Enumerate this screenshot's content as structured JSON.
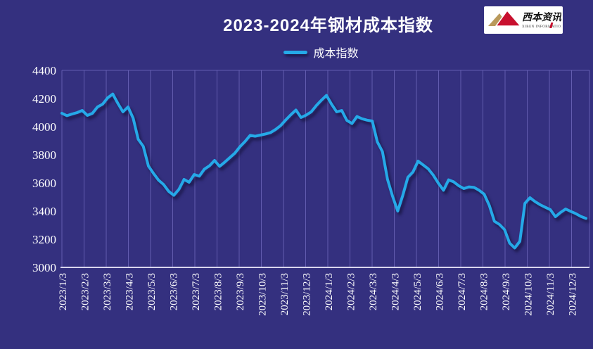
{
  "title": "2023-2024年钢材成本指数",
  "legend": {
    "label": "成本指数"
  },
  "logo": {
    "name": "西本资讯",
    "subtext": "XIBEN INFORMATION"
  },
  "colors": {
    "background": "#34307F",
    "gridline": "#6E68BC",
    "axis_line": "#D9D6EE",
    "series_line": "#25A9E8",
    "tick_text": "#FFFFFF",
    "title_text": "#FFFFFF",
    "logo_red": "#C8102E",
    "logo_gold": "#B9995B"
  },
  "chart_data": {
    "type": "line",
    "title": "2023-2024年钢材成本指数",
    "legend_position": "top-center",
    "grid": "vertical-only",
    "ylim": [
      3000,
      4400
    ],
    "yticks": [
      4400,
      4200,
      4000,
      3800,
      3600,
      3400,
      3200,
      3000
    ],
    "xtick_labels": [
      "2023/1/3",
      "2023/2/3",
      "2023/3/3",
      "2023/4/3",
      "2023/5/3",
      "2023/6/3",
      "2023/7/3",
      "2023/8/3",
      "2023/9/3",
      "2023/10/3",
      "2023/11/3",
      "2023/12/3",
      "2024/1/3",
      "2024/2/3",
      "2024/3/3",
      "2024/4/3",
      "2024/5/3",
      "2024/6/3",
      "2024/7/3",
      "2024/8/3",
      "2024/9/3",
      "2024/10/3",
      "2024/11/3",
      "2024/12/3"
    ],
    "x": [
      "2023/1/3",
      "2023/1/10",
      "2023/1/17",
      "2023/1/24",
      "2023/1/31",
      "2023/2/7",
      "2023/2/14",
      "2023/2/21",
      "2023/2/28",
      "2023/3/7",
      "2023/3/14",
      "2023/3/21",
      "2023/3/28",
      "2023/4/4",
      "2023/4/11",
      "2023/4/18",
      "2023/4/25",
      "2023/5/2",
      "2023/5/9",
      "2023/5/16",
      "2023/5/23",
      "2023/5/30",
      "2023/6/6",
      "2023/6/13",
      "2023/6/20",
      "2023/6/27",
      "2023/7/4",
      "2023/7/11",
      "2023/7/18",
      "2023/7/25",
      "2023/8/1",
      "2023/8/8",
      "2023/8/15",
      "2023/8/22",
      "2023/8/29",
      "2023/9/5",
      "2023/9/12",
      "2023/9/19",
      "2023/9/26",
      "2023/10/3",
      "2023/10/10",
      "2023/10/17",
      "2023/10/24",
      "2023/10/31",
      "2023/11/7",
      "2023/11/14",
      "2023/11/21",
      "2023/11/28",
      "2023/12/5",
      "2023/12/12",
      "2023/12/19",
      "2023/12/26",
      "2024/1/2",
      "2024/1/9",
      "2024/1/16",
      "2024/1/23",
      "2024/1/30",
      "2024/2/6",
      "2024/2/13",
      "2024/2/20",
      "2024/2/27",
      "2024/3/5",
      "2024/3/12",
      "2024/3/19",
      "2024/3/26",
      "2024/4/2",
      "2024/4/9",
      "2024/4/16",
      "2024/4/23",
      "2024/4/30",
      "2024/5/7",
      "2024/5/14",
      "2024/5/21",
      "2024/5/28",
      "2024/6/4",
      "2024/6/11",
      "2024/6/18",
      "2024/6/25",
      "2024/7/2",
      "2024/7/9",
      "2024/7/16",
      "2024/7/23",
      "2024/7/30",
      "2024/8/6",
      "2024/8/13",
      "2024/8/20",
      "2024/8/27",
      "2024/9/3",
      "2024/9/10",
      "2024/9/17",
      "2024/9/24",
      "2024/10/1",
      "2024/10/8",
      "2024/10/15",
      "2024/10/22",
      "2024/10/29",
      "2024/11/5",
      "2024/11/12",
      "2024/11/19",
      "2024/11/26",
      "2024/12/3",
      "2024/12/10",
      "2024/12/17",
      "2024/12/24"
    ],
    "series": [
      {
        "name": "成本指数",
        "values": [
          4095,
          4078,
          4090,
          4100,
          4115,
          4080,
          4095,
          4140,
          4160,
          4205,
          4232,
          4165,
          4105,
          4140,
          4060,
          3910,
          3860,
          3720,
          3668,
          3620,
          3588,
          3540,
          3512,
          3555,
          3625,
          3605,
          3660,
          3648,
          3698,
          3722,
          3760,
          3718,
          3748,
          3780,
          3812,
          3858,
          3895,
          3938,
          3932,
          3940,
          3948,
          3958,
          3980,
          4008,
          4048,
          4085,
          4118,
          4065,
          4082,
          4105,
          4150,
          4188,
          4222,
          4160,
          4105,
          4115,
          4045,
          4022,
          4072,
          4056,
          4046,
          4040,
          3892,
          3822,
          3625,
          3505,
          3400,
          3512,
          3640,
          3678,
          3755,
          3728,
          3700,
          3655,
          3598,
          3548,
          3622,
          3608,
          3580,
          3560,
          3572,
          3568,
          3548,
          3520,
          3440,
          3328,
          3305,
          3268,
          3172,
          3138,
          3185,
          3455,
          3495,
          3467,
          3445,
          3427,
          3410,
          3360,
          3390,
          3415,
          3398,
          3382,
          3362,
          3348
        ]
      }
    ]
  }
}
